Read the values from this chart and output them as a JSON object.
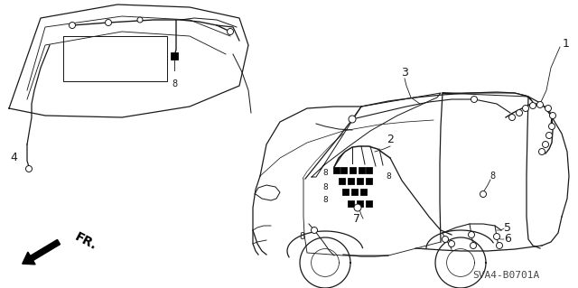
{
  "part_number": "SVA4-B0701A",
  "background_color": "#ffffff",
  "line_color": "#1a1a1a",
  "fig_width": 6.4,
  "fig_height": 3.19,
  "dpi": 100
}
